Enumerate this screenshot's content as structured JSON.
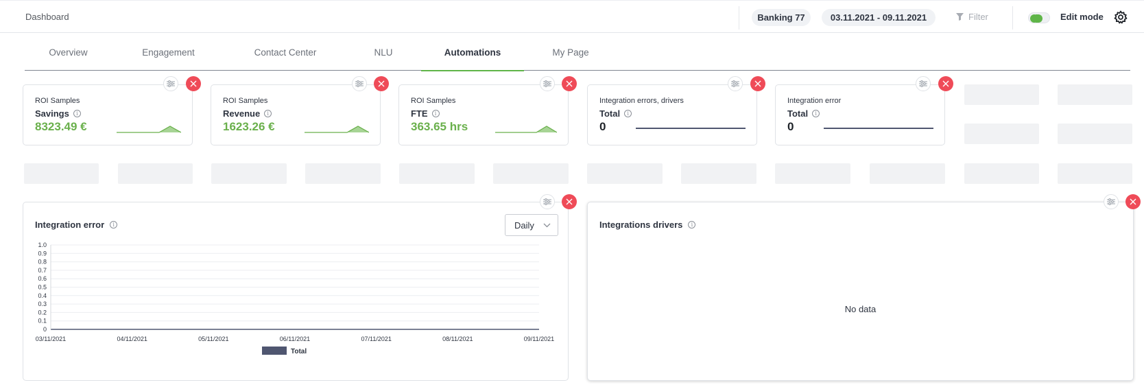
{
  "header": {
    "breadcrumb": "Dashboard",
    "bank": "Banking 77",
    "date_range": "03.11.2021 - 09.11.2021",
    "filter_label": "Filter",
    "edit_mode_label": "Edit mode",
    "edit_mode_on": true
  },
  "tabs": [
    {
      "label": "Overview"
    },
    {
      "label": "Engagement"
    },
    {
      "label": "Contact Center"
    },
    {
      "label": "NLU"
    },
    {
      "label": "Automations"
    },
    {
      "label": "My Page"
    }
  ],
  "active_tab": "Automations",
  "kpis": [
    {
      "kicker": "ROI Samples",
      "metric": "Savings",
      "value": "8323.49 €"
    },
    {
      "kicker": "ROI Samples",
      "metric": "Revenue",
      "value": "1623.26 €"
    },
    {
      "kicker": "ROI Samples",
      "metric": "FTE",
      "value": "363.65 hrs"
    },
    {
      "kicker": "Integration errors, drivers",
      "metric": "Total",
      "value": "0"
    },
    {
      "kicker": "Integration error",
      "metric": "Total",
      "value": "0"
    }
  ],
  "integration_error_panel": {
    "title": "Integration error",
    "granularity": "Daily"
  },
  "integrations_drivers_panel": {
    "title": "Integrations drivers",
    "empty_text": "No data"
  },
  "colors": {
    "accent_green": "#5fb548",
    "value_green": "#6ab04c",
    "close_red": "#ef4b58",
    "series_total": "#4f5670"
  },
  "chart_data": {
    "type": "bar",
    "title": "",
    "x": [
      "03/11/2021",
      "04/11/2021",
      "05/11/2021",
      "06/11/2021",
      "07/11/2021",
      "08/11/2021",
      "09/11/2021"
    ],
    "series": [
      {
        "name": "Total",
        "values": [
          0,
          0,
          0,
          0,
          0,
          0,
          0
        ]
      }
    ],
    "yticks": [
      "1.0",
      "0.9",
      "0.8",
      "0.7",
      "0.6",
      "0.5",
      "0.4",
      "0.3",
      "0.2",
      "0.1",
      "0"
    ],
    "ylim": [
      0,
      1
    ],
    "grid": true,
    "legend": "bottom"
  }
}
